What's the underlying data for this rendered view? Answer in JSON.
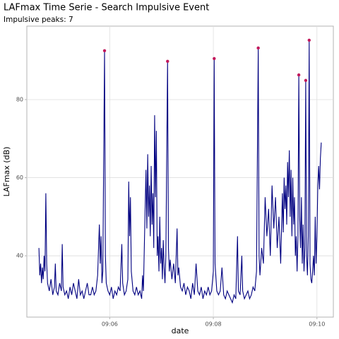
{
  "chart_data": {
    "type": "line",
    "title": "LAFmax Time Serie - Search Impulsive Event",
    "subtitle": "Impulsive peaks: 7",
    "x_label": "date",
    "y_label": "LAFmax (dB)",
    "xlim": [
      "09:04:24",
      "09:10:19"
    ],
    "xticks": [
      "09:06",
      "09:08",
      "09:10"
    ],
    "ylim": [
      24.3,
      98.8
    ],
    "yticks": [
      40,
      60,
      80
    ],
    "grid": true,
    "series": [
      {
        "color": "#000080",
        "x": [
          "09:04:38",
          "09:04:39",
          "09:04:40",
          "09:04:41",
          "09:04:42",
          "09:04:43",
          "09:04:44",
          "09:04:45",
          "09:04:46",
          "09:04:47",
          "09:04:48",
          "09:04:50",
          "09:04:52",
          "09:04:54",
          "09:04:56",
          "09:04:57",
          "09:04:58",
          "09:05:00",
          "09:05:02",
          "09:05:04",
          "09:05:05",
          "09:05:06",
          "09:05:08",
          "09:05:10",
          "09:05:12",
          "09:05:14",
          "09:05:16",
          "09:05:18",
          "09:05:20",
          "09:05:22",
          "09:05:24",
          "09:05:26",
          "09:05:28",
          "09:05:30",
          "09:05:32",
          "09:05:34",
          "09:05:36",
          "09:05:38",
          "09:05:40",
          "09:05:42",
          "09:05:44",
          "09:05:46",
          "09:05:48",
          "09:05:49",
          "09:05:50",
          "09:05:51",
          "09:05:52",
          "09:05:54",
          "09:05:55",
          "09:05:56",
          "09:05:58",
          "09:06:00",
          "09:06:02",
          "09:06:04",
          "09:06:06",
          "09:06:08",
          "09:06:10",
          "09:06:12",
          "09:06:14",
          "09:06:15",
          "09:06:17",
          "09:06:19",
          "09:06:21",
          "09:06:22",
          "09:06:23",
          "09:06:24",
          "09:06:25",
          "09:06:27",
          "09:06:29",
          "09:06:31",
          "09:06:33",
          "09:06:35",
          "09:06:37",
          "09:06:38",
          "09:06:39",
          "09:06:41",
          "09:06:42",
          "09:06:43",
          "09:06:44",
          "09:06:45",
          "09:06:46",
          "09:06:47",
          "09:06:48",
          "09:06:49",
          "09:06:50",
          "09:06:51",
          "09:06:52",
          "09:06:53",
          "09:06:54",
          "09:06:55",
          "09:06:56",
          "09:06:57",
          "09:06:58",
          "09:06:59",
          "09:07:00",
          "09:07:01",
          "09:07:02",
          "09:07:03",
          "09:07:04",
          "09:07:05",
          "09:07:07",
          "09:07:08",
          "09:07:09",
          "09:07:10",
          "09:07:12",
          "09:07:14",
          "09:07:16",
          "09:07:18",
          "09:07:19",
          "09:07:20",
          "09:07:22",
          "09:07:24",
          "09:07:26",
          "09:07:28",
          "09:07:30",
          "09:07:32",
          "09:07:34",
          "09:07:36",
          "09:07:38",
          "09:07:40",
          "09:07:42",
          "09:07:44",
          "09:07:46",
          "09:07:48",
          "09:07:50",
          "09:07:52",
          "09:07:54",
          "09:07:56",
          "09:07:58",
          "09:08:00",
          "09:08:01",
          "09:08:02",
          "09:08:04",
          "09:08:06",
          "09:08:08",
          "09:08:10",
          "09:08:12",
          "09:08:14",
          "09:08:16",
          "09:08:18",
          "09:08:20",
          "09:08:22",
          "09:08:24",
          "09:08:26",
          "09:08:28",
          "09:08:29",
          "09:08:31",
          "09:08:33",
          "09:08:34",
          "09:08:36",
          "09:08:38",
          "09:08:40",
          "09:08:42",
          "09:08:44",
          "09:08:46",
          "09:08:48",
          "09:08:50",
          "09:08:52",
          "09:08:53",
          "09:08:54",
          "09:08:56",
          "09:08:58",
          "09:09:00",
          "09:09:02",
          "09:09:04",
          "09:09:06",
          "09:09:08",
          "09:09:10",
          "09:09:12",
          "09:09:14",
          "09:09:16",
          "09:09:18",
          "09:09:20",
          "09:09:21",
          "09:09:22",
          "09:09:23",
          "09:09:24",
          "09:09:25",
          "09:09:26",
          "09:09:27",
          "09:09:28",
          "09:09:29",
          "09:09:30",
          "09:09:31",
          "09:09:32",
          "09:09:33",
          "09:09:34",
          "09:09:35",
          "09:09:36",
          "09:09:37",
          "09:09:38",
          "09:09:39",
          "09:09:40",
          "09:09:41",
          "09:09:42",
          "09:09:43",
          "09:09:44",
          "09:09:45",
          "09:09:46",
          "09:09:47",
          "09:09:48",
          "09:09:49",
          "09:09:50",
          "09:09:51",
          "09:09:52",
          "09:09:53",
          "09:09:54",
          "09:09:55",
          "09:09:56",
          "09:09:57",
          "09:09:58",
          "09:09:59",
          "09:10:00",
          "09:10:01",
          "09:10:02",
          "09:10:03",
          "09:10:04",
          "09:10:05"
        ],
        "values": [
          42,
          35,
          38,
          33,
          37,
          34,
          40,
          36,
          56,
          38,
          33,
          31,
          34,
          30,
          32,
          38,
          31,
          30,
          33,
          31,
          43,
          32,
          30,
          31,
          29,
          32,
          30,
          33,
          31,
          29,
          34,
          30,
          31,
          29,
          31,
          33,
          30,
          30,
          32,
          30,
          31,
          35,
          48,
          38,
          45,
          33,
          36,
          92.5,
          40,
          33,
          31,
          30,
          32,
          29,
          31,
          30,
          32,
          31,
          43,
          33,
          30,
          31,
          34,
          59,
          45,
          55,
          36,
          31,
          30,
          32,
          30,
          31,
          29,
          35,
          31,
          52,
          62,
          47,
          66,
          50,
          58,
          45,
          63,
          48,
          56,
          42,
          76,
          55,
          72,
          40,
          45,
          36,
          50,
          38,
          42,
          34,
          44,
          37,
          33,
          40,
          89.8,
          42,
          36,
          39,
          34,
          38,
          33,
          47,
          35,
          37,
          32,
          31,
          33,
          30,
          32,
          31,
          29,
          33,
          30,
          38,
          31,
          30,
          32,
          29,
          31,
          30,
          32,
          30,
          31,
          36,
          90.5,
          38,
          31,
          30,
          31,
          37,
          30,
          29,
          31,
          30,
          29,
          28,
          30,
          29,
          45,
          31,
          30,
          40,
          31,
          29,
          30,
          31,
          29,
          30,
          32,
          31,
          36,
          93.2,
          40,
          35,
          42,
          38,
          55,
          45,
          52,
          40,
          58,
          47,
          55,
          42,
          50,
          38,
          56,
          46,
          60,
          52,
          58,
          48,
          64,
          55,
          67,
          50,
          62,
          45,
          60,
          48,
          55,
          40,
          45,
          36,
          45,
          86.3,
          50,
          42,
          55,
          38,
          48,
          36,
          42,
          84.9,
          40,
          35,
          45,
          95.2,
          38,
          34,
          33,
          36,
          40,
          35,
          50,
          38,
          45,
          58,
          63,
          57,
          65,
          69
        ]
      }
    ],
    "peaks": {
      "color": "#c2185b",
      "x": [
        "09:05:54",
        "09:07:07",
        "09:08:01",
        "09:08:52",
        "09:09:39",
        "09:09:47",
        "09:09:51"
      ],
      "values": [
        92.5,
        89.8,
        90.5,
        93.2,
        86.3,
        84.9,
        95.2
      ]
    }
  }
}
